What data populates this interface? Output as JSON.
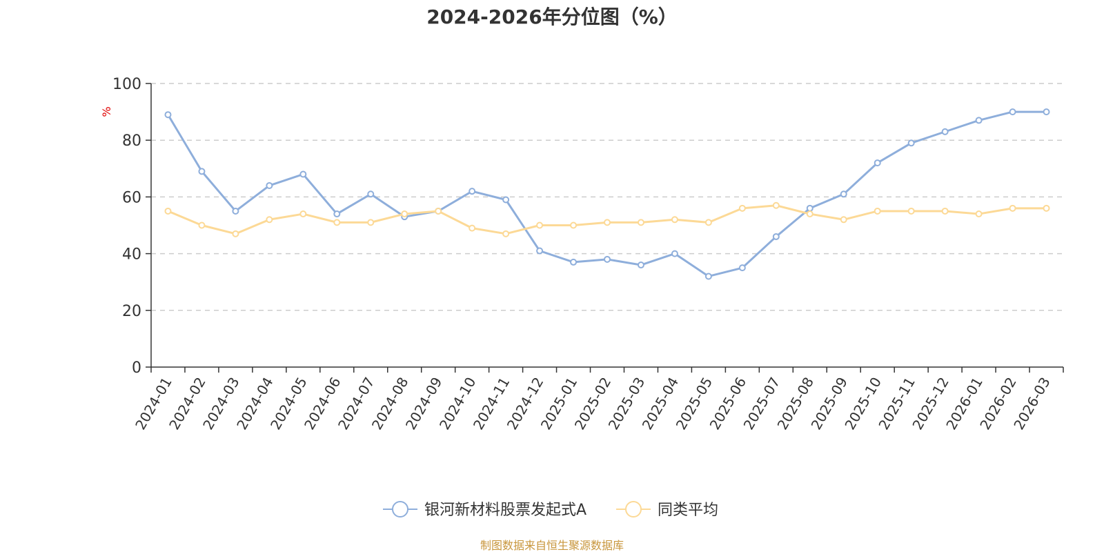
{
  "chart_data": {
    "type": "line",
    "title": "2024-2026年分位图（%）",
    "ylabel": "%",
    "ylim": [
      0,
      100
    ],
    "yticks": [
      0,
      20,
      40,
      60,
      80,
      100
    ],
    "grid": true,
    "legend_position": "bottom-center",
    "categories": [
      "2024-01",
      "2024-02",
      "2024-03",
      "2024-04",
      "2024-05",
      "2024-06",
      "2024-07",
      "2024-08",
      "2024-09",
      "2024-10",
      "2024-11",
      "2024-12",
      "2025-01",
      "2025-02",
      "2025-03",
      "2025-04",
      "2025-05",
      "2025-06",
      "2025-07",
      "2025-08",
      "2025-09",
      "2025-10",
      "2025-11",
      "2025-12",
      "2026-01",
      "2026-02",
      "2026-03"
    ],
    "series": [
      {
        "name": "银河新材料股票发起式A",
        "color": "#8eaedb",
        "values": [
          89,
          69,
          55,
          64,
          68,
          54,
          61,
          53,
          55,
          62,
          59,
          41,
          37,
          38,
          36,
          40,
          32,
          35,
          46,
          56,
          61,
          72,
          79,
          83,
          87,
          90,
          90
        ]
      },
      {
        "name": "同类平均",
        "color": "#fcd996",
        "values": [
          55,
          50,
          47,
          52,
          54,
          51,
          51,
          54,
          55,
          49,
          47,
          50,
          50,
          51,
          51,
          52,
          51,
          56,
          57,
          54,
          52,
          55,
          55,
          55,
          54,
          56,
          56
        ]
      }
    ]
  },
  "source_text": "制图数据来自恒生聚源数据库",
  "colors": {
    "unit": "#e00000",
    "source": "#c8963c",
    "grid": "#cccccc",
    "axis": "#333333"
  }
}
